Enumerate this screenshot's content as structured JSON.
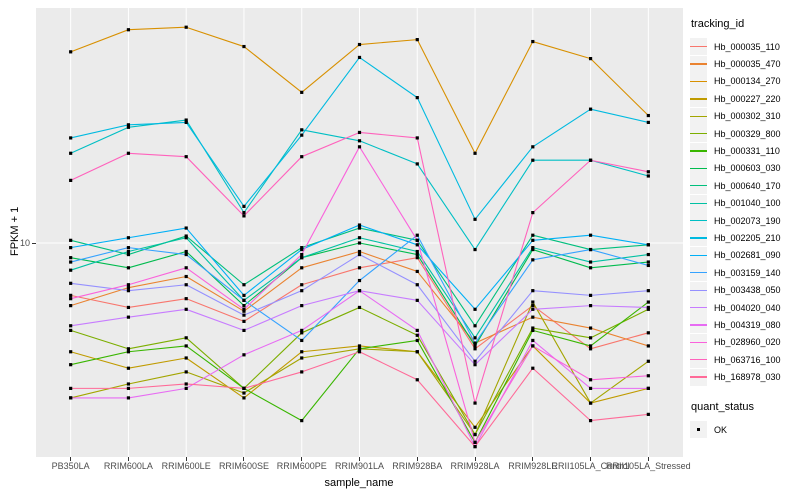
{
  "chart_data": {
    "type": "line",
    "title": "",
    "xlabel": "sample_name",
    "ylabel": "FPKM + 1",
    "y_scale": "log10",
    "y_tick_label": "10",
    "y_tick_value": 10,
    "y_range_approx": [
      1,
      120
    ],
    "grid": "on",
    "panel_bg": "#EBEBEB",
    "grid_color": "#FFFFFF",
    "point_shape": "filled-square",
    "point_color": "#000000",
    "legend": {
      "position": "right",
      "color_title": "tracking_id",
      "shape_title": "quant_status",
      "shape_items": [
        {
          "label": "OK",
          "shape": "filled-square"
        }
      ]
    },
    "categories": [
      "PB350LA",
      "RRIM600LA",
      "RRIM600LE",
      "RRIM600SE",
      "RRIM600PE",
      "RRIM901LA",
      "RRIM928BA",
      "RRIM928LA",
      "RRIM928LE",
      "RRII105LA_Control",
      "RRII105LA_Stressed"
    ],
    "series": [
      {
        "name": "Hb_000035_110",
        "color": "#F8766D",
        "values": [
          5.6,
          4.9,
          5.4,
          4.2,
          6.3,
          7.6,
          8.5,
          3.1,
          5.0,
          3.1,
          3.7
        ]
      },
      {
        "name": "Hb_000035_470",
        "color": "#EA8331",
        "values": [
          5.0,
          6.1,
          6.9,
          4.7,
          7.6,
          9.1,
          7.3,
          3.3,
          4.4,
          3.9,
          3.2
        ]
      },
      {
        "name": "Hb_000134_270",
        "color": "#D89000",
        "values": [
          83,
          106,
          109,
          88,
          53,
          90,
          95,
          27,
          93,
          77,
          41
        ]
      },
      {
        "name": "Hb_000227_220",
        "color": "#C09B00",
        "values": [
          3.0,
          2.5,
          2.8,
          1.8,
          3.0,
          3.2,
          3.0,
          1.3,
          3.2,
          1.7,
          2.0
        ]
      },
      {
        "name": "Hb_000302_310",
        "color": "#A3A500",
        "values": [
          1.8,
          2.1,
          2.4,
          1.9,
          2.8,
          3.1,
          3.0,
          1.2,
          5.2,
          1.7,
          2.7
        ]
      },
      {
        "name": "Hb_000329_800",
        "color": "#7CAE00",
        "values": [
          3.8,
          3.1,
          3.5,
          2.0,
          3.7,
          4.9,
          3.6,
          1.2,
          3.9,
          3.5,
          4.8
        ]
      },
      {
        "name": "Hb_000331_110",
        "color": "#39B600",
        "values": [
          2.6,
          3.0,
          3.2,
          2.0,
          1.4,
          3.1,
          3.4,
          1.1,
          3.8,
          3.2,
          5.2
        ]
      },
      {
        "name": "Hb_000603_030",
        "color": "#00BB4E",
        "values": [
          8.5,
          7.6,
          9.1,
          5.0,
          8.5,
          10,
          8.8,
          3.2,
          9.3,
          7.6,
          8.1
        ]
      },
      {
        "name": "Hb_000640_170",
        "color": "#00BF7D",
        "values": [
          10.3,
          8.8,
          10.8,
          6.3,
          9.5,
          11.8,
          10.3,
          4.0,
          10.9,
          9.3,
          9.8
        ]
      },
      {
        "name": "Hb_001040_100",
        "color": "#00C1A3",
        "values": [
          7.4,
          9.1,
          10.6,
          5.3,
          8.5,
          10.6,
          9.1,
          3.5,
          9.5,
          8.1,
          8.8
        ]
      },
      {
        "name": "Hb_002073_190",
        "color": "#00BFC4",
        "values": [
          27,
          36,
          39,
          14,
          35,
          31,
          24,
          9.3,
          25,
          25,
          21
        ]
      },
      {
        "name": "Hb_002205_210",
        "color": "#00BAE0",
        "values": [
          32,
          37,
          38,
          15,
          33,
          78,
          50,
          13,
          29,
          44,
          38
        ]
      },
      {
        "name": "Hb_002681_090",
        "color": "#00B0F6",
        "values": [
          9.5,
          10.6,
          11.8,
          5.6,
          9.3,
          12.2,
          9.8,
          4.8,
          10.3,
          10.9,
          9.8
        ]
      },
      {
        "name": "Hb_003159_140",
        "color": "#35A2FF",
        "values": [
          8.1,
          9.5,
          8.8,
          5.3,
          3.4,
          6.6,
          10.9,
          3.3,
          8.3,
          9.3,
          7.8
        ]
      },
      {
        "name": "Hb_003438_050",
        "color": "#9590FF",
        "values": [
          6.4,
          5.9,
          6.3,
          4.5,
          5.9,
          8.8,
          6.3,
          2.7,
          5.9,
          5.6,
          5.9
        ]
      },
      {
        "name": "Hb_004020_040",
        "color": "#C77CFF",
        "values": [
          4.0,
          4.4,
          4.8,
          3.8,
          5.0,
          5.9,
          5.3,
          2.6,
          4.8,
          5.0,
          4.9
        ]
      },
      {
        "name": "Hb_004319_080",
        "color": "#E76BF3",
        "values": [
          1.8,
          1.8,
          2.0,
          2.9,
          3.8,
          5.9,
          3.8,
          1.05,
          3.4,
          2.0,
          2.0
        ]
      },
      {
        "name": "Hb_028960_020",
        "color": "#FA62DB",
        "values": [
          5.4,
          6.3,
          7.6,
          4.8,
          8.8,
          29,
          10.3,
          1.1,
          3.2,
          2.2,
          2.3
        ]
      },
      {
        "name": "Hb_063716_100",
        "color": "#FF62BC",
        "values": [
          20,
          27,
          26,
          13.5,
          26,
          34,
          32,
          1.7,
          14,
          25,
          22
        ]
      },
      {
        "name": "Hb_168978_030",
        "color": "#FF6A98",
        "values": [
          2.0,
          2.0,
          2.1,
          2.0,
          2.4,
          3.0,
          2.2,
          1.05,
          2.5,
          1.4,
          1.5
        ]
      }
    ]
  }
}
